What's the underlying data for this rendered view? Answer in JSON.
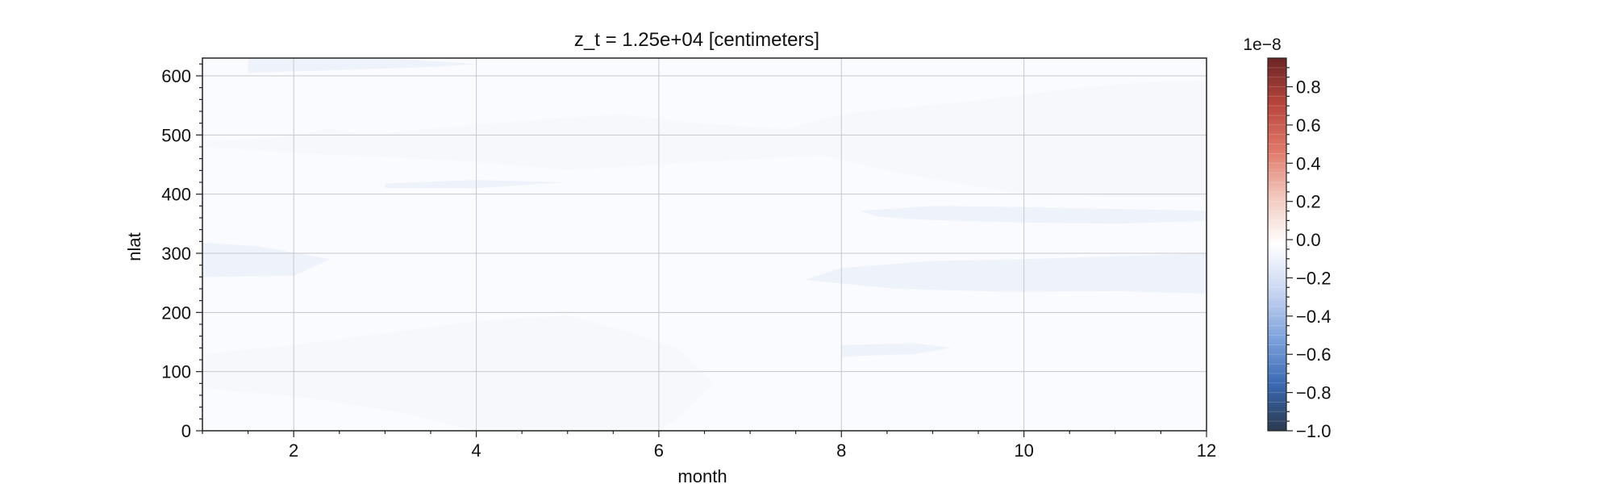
{
  "chart_data": {
    "type": "heatmap",
    "title": "z_t = 1.25e+04 [centimeters]",
    "xlabel": "month",
    "ylabel": "nlat",
    "xlim": [
      1,
      12
    ],
    "ylim": [
      0,
      630
    ],
    "xticks": [
      2,
      4,
      6,
      8,
      10,
      12
    ],
    "yticks": [
      0,
      100,
      200,
      300,
      400,
      500,
      600
    ],
    "grid": true,
    "colorbar": {
      "scale_label": "1e−8",
      "range": [
        -1.0,
        0.95
      ],
      "ticks": [
        0.8,
        0.6,
        0.4,
        0.2,
        0.0,
        -0.2,
        -0.4,
        -0.6,
        -0.8,
        -1.0
      ],
      "tick_labels": [
        "0.8",
        "0.6",
        "0.4",
        "0.2",
        "0.0",
        "−0.2",
        "−0.4",
        "−0.6",
        "−0.8",
        "−1.0"
      ],
      "colormap": "diverging blue-white-red",
      "colors": [
        "#2b3a4e",
        "#3a69b4",
        "#7fa3dc",
        "#c9d6f2",
        "#ffffff",
        "#f2c9bf",
        "#e0796a",
        "#b8463d",
        "#6b2525"
      ]
    },
    "contours": [
      {
        "level": -0.05,
        "polygon": [
          [
            1,
            490
          ],
          [
            1.8,
            495
          ],
          [
            2.4,
            510
          ],
          [
            2.8,
            500
          ],
          [
            3.6,
            512
          ],
          [
            4.6,
            525
          ],
          [
            5.6,
            535
          ],
          [
            6.4,
            520
          ],
          [
            7.4,
            510
          ],
          [
            8.0,
            535
          ],
          [
            8.6,
            545
          ],
          [
            9.6,
            560
          ],
          [
            10.6,
            580
          ],
          [
            11.4,
            590
          ],
          [
            12,
            592
          ],
          [
            12,
            630
          ],
          [
            1,
            630
          ]
        ]
      },
      {
        "level": -0.05,
        "polygon": [
          [
            1,
            72
          ],
          [
            2.2,
            55
          ],
          [
            3.2,
            30
          ],
          [
            4.0,
            0
          ],
          [
            1,
            0
          ]
        ]
      },
      {
        "level": -0.05,
        "polygon": [
          [
            1,
            480
          ],
          [
            2,
            470
          ],
          [
            4,
            455
          ],
          [
            5,
            440
          ],
          [
            6.5,
            455
          ],
          [
            7.8,
            465
          ],
          [
            8.5,
            440
          ],
          [
            9.2,
            420
          ],
          [
            10,
            400
          ],
          [
            11,
            390
          ],
          [
            12,
            385
          ],
          [
            12,
            92
          ],
          [
            11.5,
            110
          ],
          [
            10.8,
            130
          ],
          [
            10.2,
            140
          ],
          [
            9.8,
            120
          ],
          [
            9.4,
            90
          ],
          [
            9.0,
            0
          ],
          [
            6.0,
            0
          ],
          [
            6.2,
            20
          ],
          [
            6.6,
            80
          ],
          [
            6.2,
            140
          ],
          [
            5.6,
            170
          ],
          [
            5,
            195
          ],
          [
            4,
            185
          ],
          [
            3,
            165
          ],
          [
            2,
            145
          ],
          [
            1,
            130
          ]
        ]
      },
      {
        "level": -0.05,
        "polygon": [
          [
            2.2,
            402
          ],
          [
            3,
            418
          ],
          [
            4,
            430
          ],
          [
            5,
            428
          ],
          [
            5.8,
            420
          ],
          [
            5,
            408
          ],
          [
            4,
            400
          ],
          [
            3,
            396
          ]
        ]
      },
      {
        "level": -0.05,
        "polygon": [
          [
            1,
            360
          ],
          [
            1.4,
            320
          ],
          [
            1.6,
            290
          ],
          [
            1.4,
            250
          ],
          [
            1,
            240
          ]
        ]
      },
      {
        "level": -0.05,
        "polygon": [
          [
            6.9,
            0
          ],
          [
            7.4,
            120
          ],
          [
            7.2,
            220
          ],
          [
            7.0,
            265
          ],
          [
            7.4,
            300
          ],
          [
            8,
            320
          ],
          [
            9,
            330
          ],
          [
            10,
            335
          ],
          [
            11,
            340
          ],
          [
            12,
            345
          ],
          [
            12,
            0
          ]
        ]
      },
      {
        "level": -0.05,
        "polygon": [
          [
            7.0,
            372
          ],
          [
            7.8,
            392
          ],
          [
            9,
            400
          ],
          [
            10,
            398
          ],
          [
            11,
            395
          ],
          [
            12,
            395
          ],
          [
            12,
            345
          ],
          [
            11,
            338
          ],
          [
            10,
            342
          ],
          [
            9,
            348
          ],
          [
            8,
            355
          ],
          [
            7.2,
            365
          ]
        ]
      },
      {
        "level": -0.1,
        "polygon": [
          [
            1,
            318
          ],
          [
            1.6,
            312
          ],
          [
            2.4,
            290
          ],
          [
            2.0,
            262
          ],
          [
            1,
            260
          ]
        ]
      },
      {
        "level": -0.1,
        "polygon": [
          [
            7.6,
            255
          ],
          [
            8.6,
            240
          ],
          [
            9.8,
            235
          ],
          [
            11,
            236
          ],
          [
            12,
            232
          ],
          [
            12,
            300
          ],
          [
            11,
            295
          ],
          [
            10,
            290
          ],
          [
            9,
            287
          ],
          [
            8,
            275
          ]
        ]
      },
      {
        "level": -0.1,
        "polygon": [
          [
            8.2,
            372
          ],
          [
            9,
            380
          ],
          [
            10,
            378
          ],
          [
            11,
            375
          ],
          [
            12,
            372
          ],
          [
            12,
            355
          ],
          [
            11,
            350
          ],
          [
            10,
            352
          ],
          [
            9,
            356
          ],
          [
            8.4,
            362
          ]
        ]
      },
      {
        "level": -0.1,
        "polygon": [
          [
            3,
            418
          ],
          [
            4,
            424
          ],
          [
            5,
            420
          ],
          [
            4,
            410
          ],
          [
            3,
            410
          ]
        ]
      },
      {
        "level": -0.1,
        "polygon": [
          [
            8,
            145
          ],
          [
            8.8,
            148
          ],
          [
            9.2,
            140
          ],
          [
            8.8,
            130
          ],
          [
            8,
            125
          ]
        ]
      },
      {
        "level": -0.1,
        "polygon": [
          [
            1.5,
            605
          ],
          [
            2.5,
            610
          ],
          [
            3.5,
            615
          ],
          [
            4,
            620
          ],
          [
            3,
            630
          ],
          [
            1.5,
            630
          ]
        ]
      }
    ]
  }
}
